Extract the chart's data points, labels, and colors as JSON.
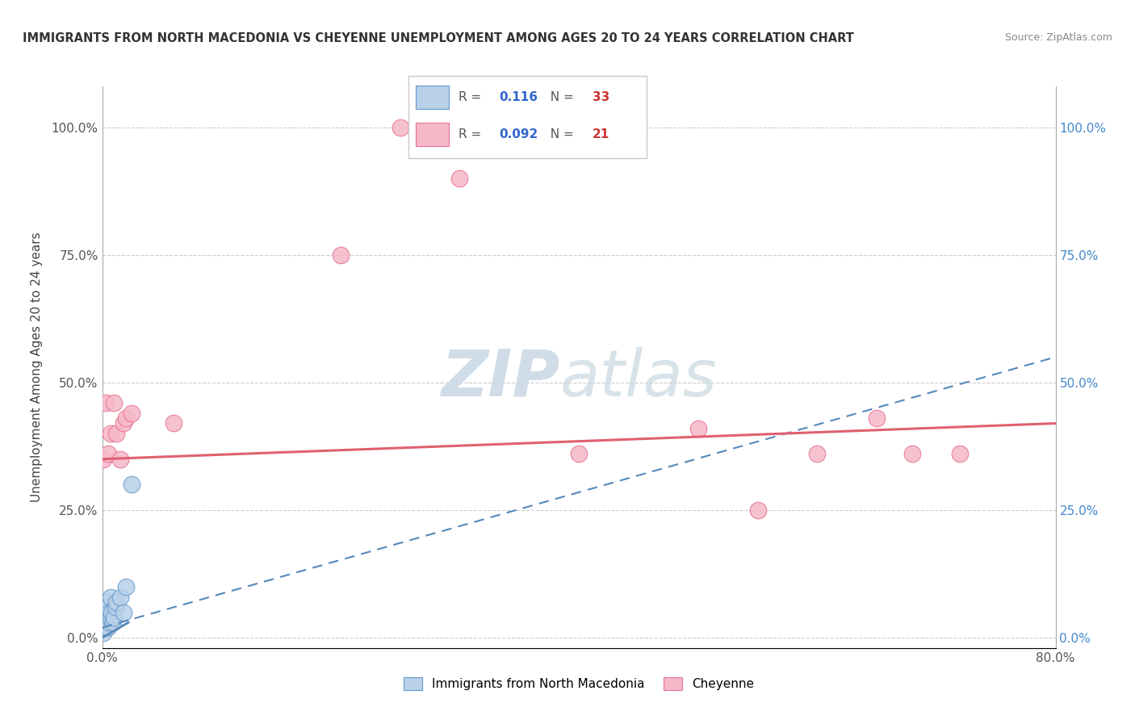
{
  "title": "IMMIGRANTS FROM NORTH MACEDONIA VS CHEYENNE UNEMPLOYMENT AMONG AGES 20 TO 24 YEARS CORRELATION CHART",
  "source": "Source: ZipAtlas.com",
  "ylabel": "Unemployment Among Ages 20 to 24 years",
  "xlim": [
    0.0,
    0.8
  ],
  "ylim": [
    -0.02,
    1.08
  ],
  "yticks": [
    0.0,
    0.25,
    0.5,
    0.75,
    1.0
  ],
  "ytick_labels": [
    "0.0%",
    "25.0%",
    "50.0%",
    "75.0%",
    "100.0%"
  ],
  "xticks": [
    0.0,
    0.8
  ],
  "xtick_labels": [
    "0.0%",
    "80.0%"
  ],
  "blue_R": "0.116",
  "blue_N": "33",
  "pink_R": "0.092",
  "pink_N": "21",
  "blue_fill_color": "#b8d0e8",
  "pink_fill_color": "#f5b8c8",
  "blue_edge_color": "#6699cc",
  "pink_edge_color": "#e87090",
  "blue_trend_color": "#5588bb",
  "pink_trend_color": "#e06070",
  "watermark_color": "#d0dde8",
  "grid_color": "#cccccc",
  "background_color": "#ffffff",
  "blue_scatter_x": [
    0.0,
    0.0,
    0.0,
    0.001,
    0.001,
    0.001,
    0.001,
    0.002,
    0.002,
    0.002,
    0.002,
    0.003,
    0.003,
    0.003,
    0.004,
    0.004,
    0.005,
    0.005,
    0.005,
    0.006,
    0.006,
    0.006,
    0.007,
    0.007,
    0.008,
    0.009,
    0.01,
    0.011,
    0.012,
    0.015,
    0.018,
    0.02,
    0.025
  ],
  "blue_scatter_y": [
    0.02,
    0.03,
    0.04,
    0.01,
    0.03,
    0.04,
    0.05,
    0.02,
    0.03,
    0.04,
    0.06,
    0.02,
    0.03,
    0.05,
    0.03,
    0.07,
    0.02,
    0.04,
    0.06,
    0.03,
    0.04,
    0.05,
    0.04,
    0.08,
    0.05,
    0.03,
    0.04,
    0.06,
    0.07,
    0.08,
    0.05,
    0.1,
    0.3
  ],
  "pink_scatter_x": [
    0.001,
    0.003,
    0.005,
    0.007,
    0.01,
    0.012,
    0.015,
    0.018,
    0.02,
    0.025,
    0.06,
    0.2,
    0.25,
    0.3,
    0.4,
    0.5,
    0.55,
    0.6,
    0.65,
    0.68,
    0.72
  ],
  "pink_scatter_y": [
    0.35,
    0.46,
    0.36,
    0.4,
    0.46,
    0.4,
    0.35,
    0.42,
    0.43,
    0.44,
    0.42,
    0.75,
    1.0,
    0.9,
    0.36,
    0.41,
    0.25,
    0.36,
    0.43,
    0.36,
    0.36
  ],
  "blue_trend_x": [
    0.0,
    0.8
  ],
  "blue_trend_y": [
    0.02,
    0.55
  ],
  "pink_trend_x": [
    0.0,
    0.8
  ],
  "pink_trend_y": [
    0.35,
    0.42
  ],
  "legend_blue_label": "Immigrants from North Macedonia",
  "legend_pink_label": "Cheyenne"
}
